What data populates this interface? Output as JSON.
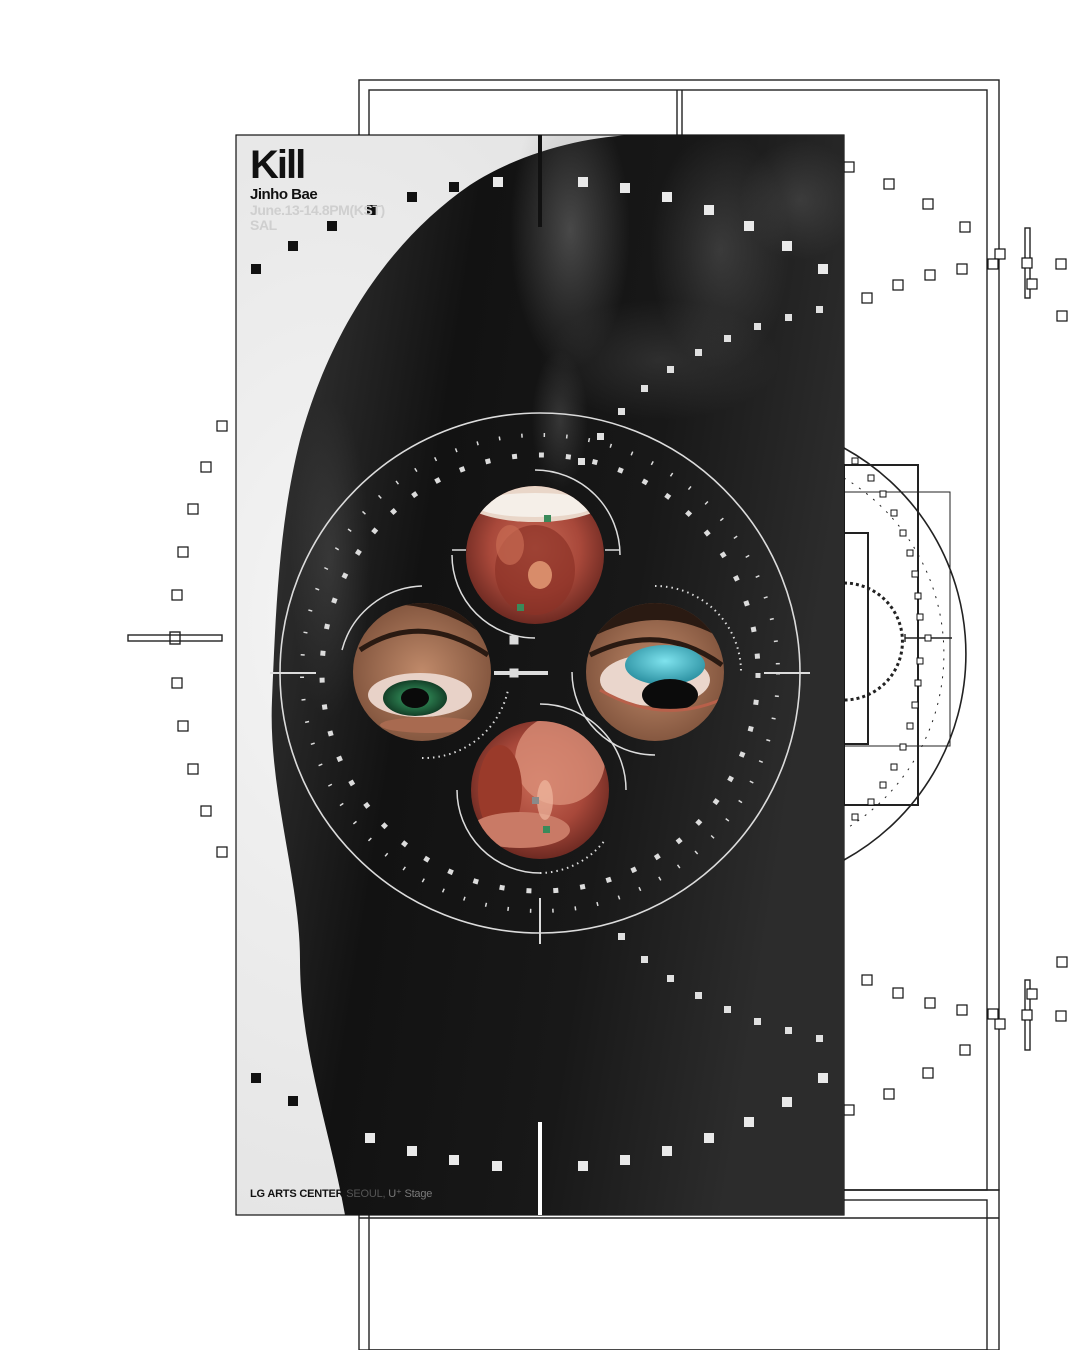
{
  "poster": {
    "title": "Kill",
    "artist": "Jinho Bae",
    "dates": "June.13-14.8PM(KST)",
    "program": "SAL",
    "venue_name": "LG ARTS CENTER",
    "venue_city": "SEOUL,",
    "venue_stage": "U⁺ Stage"
  },
  "colors": {
    "background": "#ffffff",
    "ink": "#111111",
    "poster_dark": "#0e0e0e",
    "muted_text": "#cfcfcf",
    "lens_flesh": "#b8584a",
    "iris_teal": "#3fb9c9"
  }
}
